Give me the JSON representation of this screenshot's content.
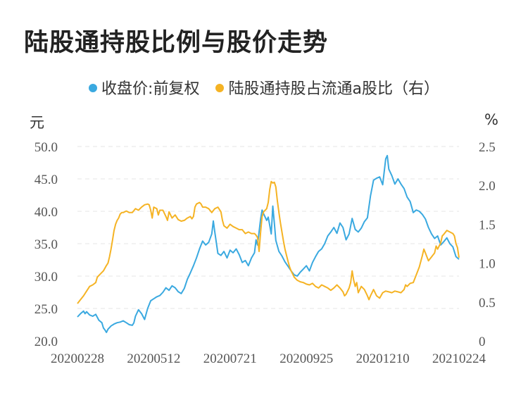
{
  "chart_data": {
    "type": "line",
    "title": "陆股通持股比例与股价走势",
    "legend": [
      {
        "name": "收盘价:前复权",
        "color": "#3aa9e0"
      },
      {
        "name": "陆股通持股占流通a股比（右）",
        "color": "#f5b324"
      }
    ],
    "y_left_unit": "元",
    "y_right_unit": "%",
    "y_left_ticks": [
      "50.0",
      "45.0",
      "40.0",
      "35.0",
      "30.0",
      "25.0",
      "20.0"
    ],
    "y_right_ticks": [
      "2.5",
      "2.0",
      "1.5",
      "1.0",
      "0.5",
      "0"
    ],
    "ylim_left": [
      20,
      50
    ],
    "ylim_right": [
      0,
      2.5
    ],
    "x_tick_labels": [
      "20200228",
      "20200512",
      "20200721",
      "20200925",
      "20201210",
      "20210224"
    ],
    "x_range_index": [
      0,
      250
    ],
    "x_tick_index": [
      0,
      50,
      100,
      150,
      200,
      250
    ],
    "series": [
      {
        "name": "收盘价:前复权",
        "axis": "left",
        "color": "#3aa9e0",
        "points": [
          [
            0,
            23.7
          ],
          [
            2,
            24.2
          ],
          [
            4,
            24.6
          ],
          [
            5,
            24.2
          ],
          [
            6,
            24.5
          ],
          [
            8,
            24.0
          ],
          [
            10,
            23.8
          ],
          [
            12,
            24.1
          ],
          [
            14,
            23.2
          ],
          [
            16,
            22.8
          ],
          [
            17,
            22.0
          ],
          [
            18,
            21.7
          ],
          [
            19,
            21.3
          ],
          [
            20,
            21.8
          ],
          [
            22,
            22.3
          ],
          [
            24,
            22.6
          ],
          [
            26,
            22.8
          ],
          [
            28,
            22.9
          ],
          [
            30,
            23.1
          ],
          [
            32,
            22.8
          ],
          [
            34,
            22.5
          ],
          [
            36,
            22.4
          ],
          [
            37,
            22.8
          ],
          [
            38,
            23.8
          ],
          [
            40,
            24.8
          ],
          [
            42,
            24.2
          ],
          [
            44,
            23.3
          ],
          [
            46,
            25.0
          ],
          [
            48,
            26.2
          ],
          [
            50,
            26.5
          ],
          [
            52,
            26.8
          ],
          [
            54,
            27.0
          ],
          [
            56,
            27.5
          ],
          [
            58,
            28.2
          ],
          [
            60,
            27.8
          ],
          [
            62,
            28.5
          ],
          [
            64,
            28.2
          ],
          [
            66,
            27.6
          ],
          [
            68,
            27.3
          ],
          [
            70,
            28.1
          ],
          [
            72,
            29.5
          ],
          [
            74,
            30.5
          ],
          [
            76,
            31.6
          ],
          [
            78,
            32.8
          ],
          [
            80,
            34.2
          ],
          [
            82,
            35.4
          ],
          [
            84,
            34.8
          ],
          [
            86,
            35.2
          ],
          [
            88,
            36.5
          ],
          [
            89,
            38.5
          ],
          [
            90,
            36.8
          ],
          [
            92,
            33.5
          ],
          [
            94,
            33.2
          ],
          [
            96,
            33.8
          ],
          [
            98,
            32.8
          ],
          [
            100,
            34.0
          ],
          [
            102,
            33.6
          ],
          [
            104,
            34.2
          ],
          [
            106,
            33.3
          ],
          [
            108,
            32.1
          ],
          [
            110,
            32.4
          ],
          [
            112,
            31.6
          ],
          [
            114,
            32.8
          ],
          [
            116,
            33.6
          ],
          [
            117,
            35.6
          ],
          [
            118,
            34.8
          ],
          [
            120,
            38.8
          ],
          [
            121,
            40.2
          ],
          [
            122,
            39.6
          ],
          [
            124,
            38.6
          ],
          [
            125,
            39.1
          ],
          [
            126,
            37.8
          ],
          [
            127,
            36.5
          ],
          [
            128,
            40.8
          ],
          [
            129,
            38.2
          ],
          [
            130,
            35.5
          ],
          [
            132,
            33.8
          ],
          [
            134,
            33.1
          ],
          [
            136,
            32.2
          ],
          [
            138,
            31.5
          ],
          [
            140,
            30.8
          ],
          [
            142,
            30.2
          ],
          [
            144,
            30.0
          ],
          [
            146,
            30.6
          ],
          [
            148,
            31.1
          ],
          [
            150,
            31.6
          ],
          [
            152,
            30.8
          ],
          [
            154,
            32.1
          ],
          [
            156,
            33.0
          ],
          [
            158,
            33.8
          ],
          [
            160,
            34.2
          ],
          [
            162,
            35.0
          ],
          [
            164,
            36.2
          ],
          [
            166,
            36.8
          ],
          [
            168,
            37.5
          ],
          [
            170,
            36.6
          ],
          [
            172,
            38.2
          ],
          [
            174,
            37.5
          ],
          [
            176,
            35.6
          ],
          [
            178,
            36.5
          ],
          [
            180,
            38.9
          ],
          [
            182,
            37.2
          ],
          [
            184,
            36.8
          ],
          [
            186,
            37.4
          ],
          [
            188,
            38.4
          ],
          [
            190,
            39.0
          ],
          [
            192,
            42.4
          ],
          [
            194,
            44.8
          ],
          [
            196,
            45.1
          ],
          [
            198,
            45.3
          ],
          [
            200,
            44.1
          ],
          [
            202,
            48.1
          ],
          [
            203,
            48.6
          ],
          [
            204,
            46.5
          ],
          [
            206,
            45.5
          ],
          [
            208,
            44.2
          ],
          [
            210,
            45.0
          ],
          [
            212,
            44.2
          ],
          [
            214,
            43.5
          ],
          [
            216,
            42.2
          ],
          [
            218,
            41.5
          ],
          [
            220,
            39.8
          ],
          [
            222,
            40.2
          ],
          [
            224,
            40.0
          ],
          [
            226,
            39.5
          ],
          [
            228,
            38.8
          ],
          [
            230,
            37.5
          ],
          [
            232,
            36.5
          ],
          [
            234,
            35.8
          ],
          [
            236,
            36.2
          ],
          [
            238,
            34.8
          ],
          [
            240,
            35.3
          ],
          [
            242,
            35.9
          ],
          [
            244,
            35.0
          ],
          [
            246,
            34.5
          ],
          [
            248,
            33.0
          ],
          [
            250,
            32.6
          ]
        ]
      },
      {
        "name": "陆股通持股占流通a股比（右）",
        "axis": "right",
        "color": "#f5b324",
        "points": [
          [
            0,
            0.48
          ],
          [
            2,
            0.53
          ],
          [
            4,
            0.58
          ],
          [
            6,
            0.64
          ],
          [
            8,
            0.7
          ],
          [
            10,
            0.72
          ],
          [
            12,
            0.75
          ],
          [
            13,
            0.82
          ],
          [
            15,
            0.86
          ],
          [
            17,
            0.9
          ],
          [
            19,
            0.97
          ],
          [
            20,
            1.0
          ],
          [
            21,
            1.08
          ],
          [
            22,
            1.18
          ],
          [
            23,
            1.3
          ],
          [
            24,
            1.42
          ],
          [
            25,
            1.5
          ],
          [
            26,
            1.55
          ],
          [
            27,
            1.58
          ],
          [
            28,
            1.63
          ],
          [
            29,
            1.65
          ],
          [
            30,
            1.65
          ],
          [
            32,
            1.67
          ],
          [
            34,
            1.65
          ],
          [
            36,
            1.65
          ],
          [
            38,
            1.7
          ],
          [
            40,
            1.68
          ],
          [
            42,
            1.72
          ],
          [
            44,
            1.75
          ],
          [
            46,
            1.76
          ],
          [
            47,
            1.75
          ],
          [
            48,
            1.68
          ],
          [
            49,
            1.58
          ],
          [
            50,
            1.72
          ],
          [
            52,
            1.7
          ],
          [
            53,
            1.62
          ],
          [
            54,
            1.68
          ],
          [
            56,
            1.68
          ],
          [
            58,
            1.6
          ],
          [
            59,
            1.55
          ],
          [
            60,
            1.66
          ],
          [
            62,
            1.58
          ],
          [
            64,
            1.62
          ],
          [
            66,
            1.56
          ],
          [
            68,
            1.54
          ],
          [
            70,
            1.55
          ],
          [
            72,
            1.58
          ],
          [
            74,
            1.6
          ],
          [
            75,
            1.57
          ],
          [
            76,
            1.6
          ],
          [
            77,
            1.72
          ],
          [
            78,
            1.76
          ],
          [
            80,
            1.78
          ],
          [
            81,
            1.76
          ],
          [
            82,
            1.72
          ],
          [
            84,
            1.72
          ],
          [
            86,
            1.7
          ],
          [
            88,
            1.65
          ],
          [
            90,
            1.7
          ],
          [
            92,
            1.72
          ],
          [
            94,
            1.66
          ],
          [
            95,
            1.55
          ],
          [
            96,
            1.48
          ],
          [
            98,
            1.45
          ],
          [
            100,
            1.5
          ],
          [
            102,
            1.47
          ],
          [
            104,
            1.45
          ],
          [
            106,
            1.43
          ],
          [
            108,
            1.43
          ],
          [
            110,
            1.38
          ],
          [
            112,
            1.4
          ],
          [
            114,
            1.38
          ],
          [
            116,
            1.38
          ],
          [
            117,
            1.36
          ],
          [
            118,
            1.33
          ],
          [
            119,
            1.15
          ],
          [
            120,
            1.4
          ],
          [
            121,
            1.6
          ],
          [
            122,
            1.66
          ],
          [
            124,
            1.7
          ],
          [
            125,
            1.78
          ],
          [
            126,
            1.95
          ],
          [
            127,
            2.05
          ],
          [
            128,
            2.03
          ],
          [
            129,
            2.04
          ],
          [
            130,
            1.98
          ],
          [
            131,
            1.8
          ],
          [
            132,
            1.65
          ],
          [
            133,
            1.52
          ],
          [
            134,
            1.4
          ],
          [
            135,
            1.28
          ],
          [
            136,
            1.18
          ],
          [
            137,
            1.1
          ],
          [
            138,
            1.02
          ],
          [
            139,
            0.95
          ],
          [
            140,
            0.9
          ],
          [
            141,
            0.86
          ],
          [
            142,
            0.82
          ],
          [
            143,
            0.8
          ],
          [
            144,
            0.78
          ],
          [
            146,
            0.76
          ],
          [
            148,
            0.75
          ],
          [
            150,
            0.73
          ],
          [
            152,
            0.72
          ],
          [
            154,
            0.74
          ],
          [
            156,
            0.7
          ],
          [
            158,
            0.68
          ],
          [
            160,
            0.72
          ],
          [
            162,
            0.7
          ],
          [
            164,
            0.68
          ],
          [
            166,
            0.65
          ],
          [
            168,
            0.68
          ],
          [
            170,
            0.72
          ],
          [
            172,
            0.68
          ],
          [
            174,
            0.63
          ],
          [
            175,
            0.58
          ],
          [
            176,
            0.6
          ],
          [
            178,
            0.68
          ],
          [
            179,
            0.75
          ],
          [
            180,
            0.9
          ],
          [
            181,
            0.78
          ],
          [
            182,
            0.7
          ],
          [
            183,
            0.75
          ],
          [
            184,
            0.62
          ],
          [
            186,
            0.7
          ],
          [
            188,
            0.66
          ],
          [
            190,
            0.58
          ],
          [
            191,
            0.53
          ],
          [
            192,
            0.58
          ],
          [
            194,
            0.66
          ],
          [
            196,
            0.58
          ],
          [
            198,
            0.55
          ],
          [
            200,
            0.62
          ],
          [
            202,
            0.64
          ],
          [
            204,
            0.63
          ],
          [
            206,
            0.62
          ],
          [
            208,
            0.64
          ],
          [
            210,
            0.63
          ],
          [
            212,
            0.62
          ],
          [
            214,
            0.66
          ],
          [
            215,
            0.72
          ],
          [
            216,
            0.7
          ],
          [
            218,
            0.74
          ],
          [
            220,
            0.75
          ],
          [
            222,
            0.85
          ],
          [
            224,
            0.95
          ],
          [
            226,
            1.1
          ],
          [
            227,
            1.18
          ],
          [
            228,
            1.13
          ],
          [
            230,
            1.03
          ],
          [
            232,
            1.08
          ],
          [
            234,
            1.13
          ],
          [
            235,
            1.22
          ],
          [
            236,
            1.18
          ],
          [
            238,
            1.26
          ],
          [
            239,
            1.35
          ],
          [
            240,
            1.37
          ],
          [
            242,
            1.42
          ],
          [
            244,
            1.4
          ],
          [
            246,
            1.38
          ],
          [
            247,
            1.35
          ],
          [
            248,
            1.25
          ],
          [
            249,
            1.2
          ],
          [
            250,
            1.07
          ]
        ]
      }
    ]
  }
}
